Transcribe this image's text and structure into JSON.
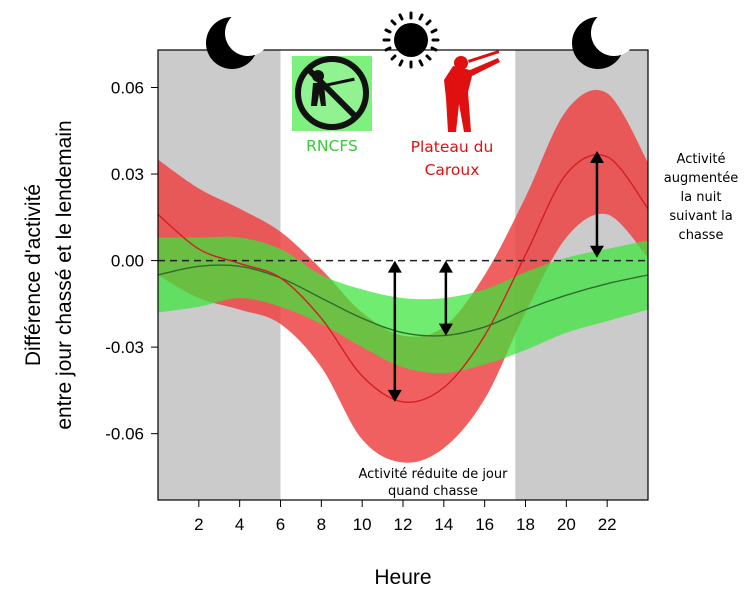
{
  "chart_data": {
    "type": "line",
    "xlabel": "Heure",
    "ylabel_lines": [
      "Différence d'activité",
      "entre jour chassé et le lendemain"
    ],
    "xlim": [
      0,
      24
    ],
    "ylim": [
      -0.083,
      0.073
    ],
    "x_ticks": [
      2,
      4,
      6,
      8,
      10,
      12,
      14,
      16,
      18,
      20,
      22
    ],
    "y_ticks": [
      0.06,
      0.03,
      0.0,
      -0.03,
      -0.06
    ],
    "y_tick_labels": [
      "0.06",
      "0.03",
      "0.00",
      "-0.03",
      "-0.06"
    ],
    "night_periods": [
      [
        0,
        6
      ],
      [
        17.5,
        24
      ]
    ],
    "reference_line_y": 0,
    "series": [
      {
        "name": "RNCFS",
        "color": "#2f6b2f",
        "band_color": "#39e639",
        "x": [
          0,
          2,
          4,
          6,
          8,
          10,
          12,
          14,
          16,
          18,
          20,
          22,
          24
        ],
        "y": [
          -0.005,
          -0.002,
          -0.002,
          -0.006,
          -0.013,
          -0.02,
          -0.025,
          -0.026,
          -0.023,
          -0.017,
          -0.012,
          -0.008,
          -0.005
        ],
        "lower": [
          -0.018,
          -0.016,
          -0.013,
          -0.016,
          -0.022,
          -0.03,
          -0.037,
          -0.039,
          -0.036,
          -0.031,
          -0.025,
          -0.021,
          -0.017
        ],
        "upper": [
          0.008,
          0.008,
          0.008,
          0.004,
          -0.005,
          -0.01,
          -0.013,
          -0.013,
          -0.01,
          -0.004,
          0.001,
          0.004,
          0.007
        ]
      },
      {
        "name": "Plateau du Caroux",
        "color": "#d12020",
        "band_color": "#ee4444",
        "x": [
          0,
          2,
          4,
          6,
          8,
          10,
          12,
          14,
          16,
          18,
          20,
          22,
          24
        ],
        "y": [
          0.016,
          0.004,
          -0.001,
          -0.006,
          -0.02,
          -0.04,
          -0.049,
          -0.044,
          -0.026,
          0.002,
          0.03,
          0.036,
          0.018
        ],
        "lower": [
          -0.005,
          -0.013,
          -0.017,
          -0.022,
          -0.037,
          -0.062,
          -0.07,
          -0.065,
          -0.048,
          -0.018,
          0.008,
          0.016,
          0.001
        ],
        "upper": [
          0.035,
          0.025,
          0.018,
          0.01,
          -0.003,
          -0.018,
          -0.026,
          -0.023,
          -0.005,
          0.022,
          0.052,
          0.058,
          0.034
        ]
      }
    ],
    "annotations": {
      "day": [
        "Activité réduite de jour",
        "quand chasse"
      ],
      "night": [
        "Activité",
        "augmentée",
        "la nuit",
        "suivant la",
        "chasse"
      ]
    },
    "arrows": [
      {
        "x": 11.6,
        "y_from": 0.0,
        "y_to": -0.049
      },
      {
        "x": 14.1,
        "y_from": 0.0,
        "y_to": -0.026
      },
      {
        "x": 21.5,
        "y_from": 0.038,
        "y_to": 0.001
      }
    ],
    "site_labels": [
      {
        "text": "RNCFS",
        "color": "#33cc33"
      },
      {
        "lines": [
          "Plateau du",
          "Caroux"
        ],
        "color": "#e01010"
      }
    ],
    "icons": [
      "moon-icon",
      "sun-icon",
      "moon-icon",
      "no-hunting-icon",
      "hunter-icon"
    ]
  }
}
